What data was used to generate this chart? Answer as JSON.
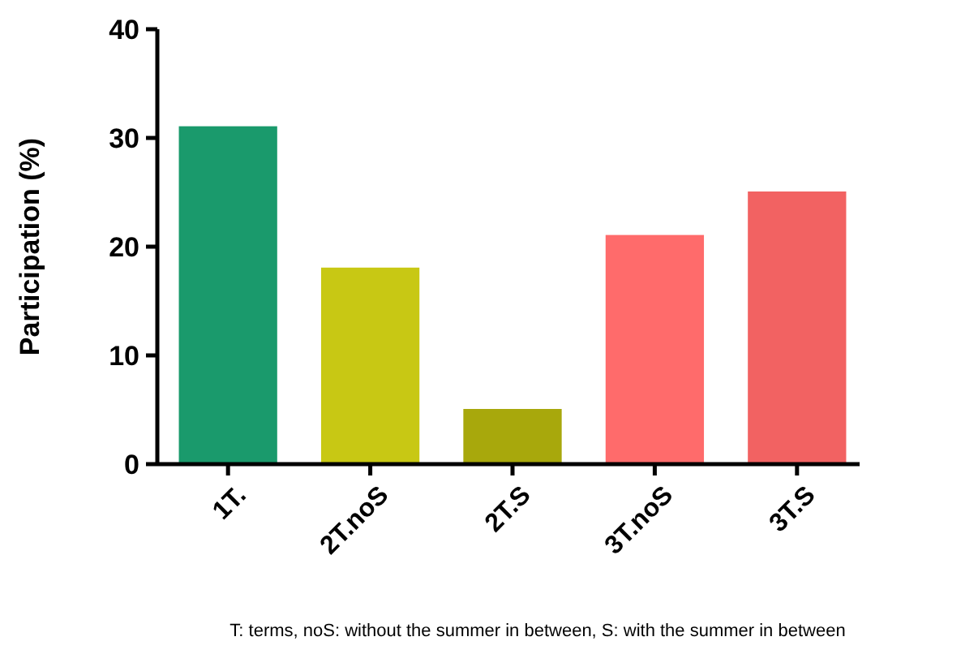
{
  "chart_data": {
    "type": "bar",
    "ylabel": "Participation (%)",
    "categories": [
      "1T.",
      "2T.noS",
      "2T.S",
      "3T.noS",
      "3T.S"
    ],
    "values": [
      31,
      18,
      5,
      21,
      25
    ],
    "colors": [
      "#1a9a6c",
      "#c8c814",
      "#a8a80c",
      "#ff6b6b",
      "#f26262"
    ],
    "ylim": [
      0,
      40
    ],
    "yticks": [
      0,
      10,
      20,
      30,
      40
    ],
    "grid": false,
    "annotations": [
      "T: terms, noS: without the summer in between, S: with the summer in between"
    ]
  }
}
